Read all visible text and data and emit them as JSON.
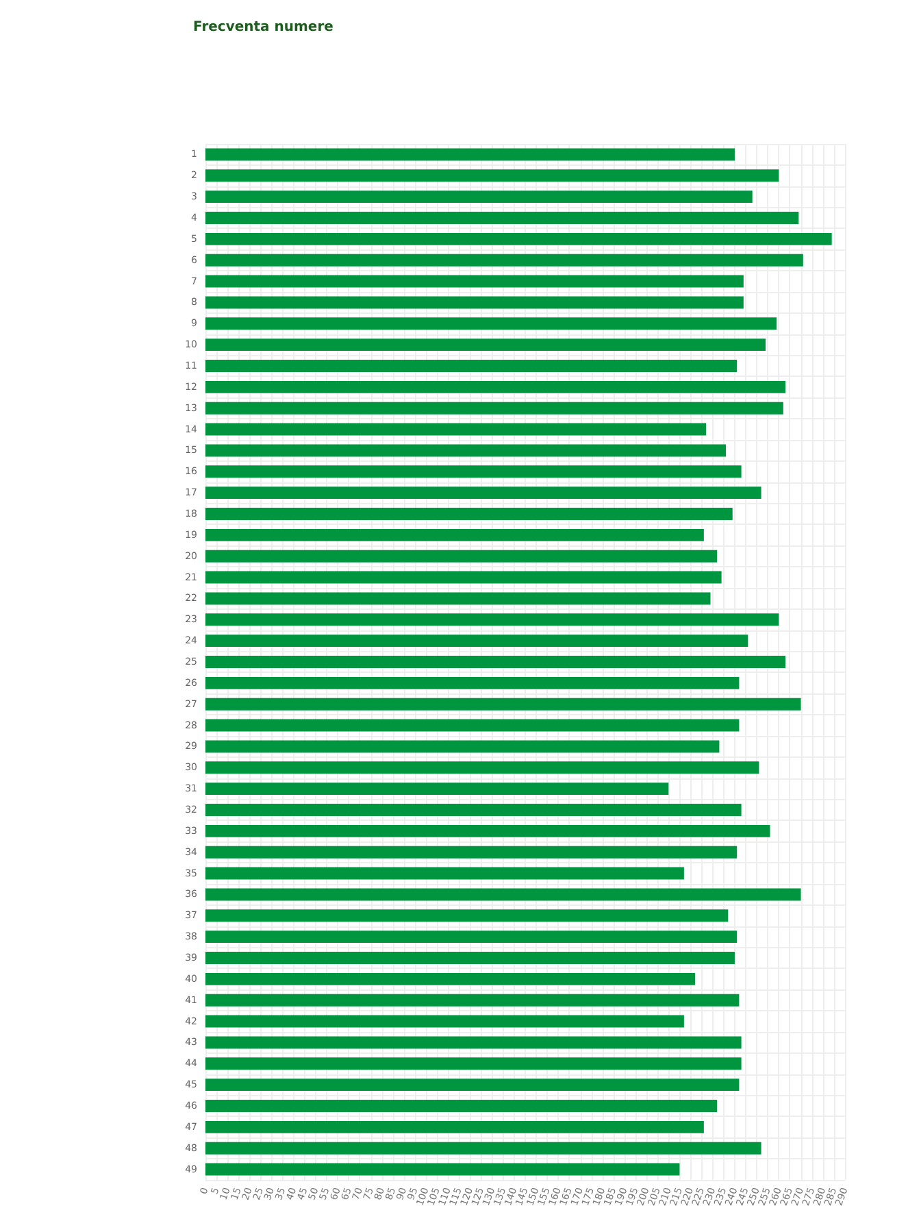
{
  "chart_data": {
    "type": "bar",
    "orientation": "horizontal",
    "title": "Frecventa numere",
    "categories": [
      "1",
      "2",
      "3",
      "4",
      "5",
      "6",
      "7",
      "8",
      "9",
      "10",
      "11",
      "12",
      "13",
      "14",
      "15",
      "16",
      "17",
      "18",
      "19",
      "20",
      "21",
      "22",
      "23",
      "24",
      "25",
      "26",
      "27",
      "28",
      "29",
      "30",
      "31",
      "32",
      "33",
      "34",
      "35",
      "36",
      "37",
      "38",
      "39",
      "40",
      "41",
      "42",
      "43",
      "44",
      "45",
      "46",
      "47",
      "48",
      "49"
    ],
    "values": [
      240,
      260,
      248,
      269,
      284,
      271,
      244,
      244,
      259,
      254,
      241,
      263,
      262,
      227,
      236,
      243,
      252,
      239,
      226,
      232,
      234,
      229,
      260,
      246,
      263,
      242,
      270,
      242,
      233,
      251,
      210,
      243,
      256,
      241,
      217,
      270,
      237,
      241,
      240,
      222,
      242,
      217,
      243,
      243,
      242,
      232,
      226,
      252,
      215
    ],
    "color": "#009640",
    "xlim": [
      0,
      290
    ],
    "xticks": [
      0,
      5,
      10,
      15,
      20,
      25,
      30,
      35,
      40,
      45,
      50,
      55,
      60,
      65,
      70,
      75,
      80,
      85,
      90,
      95,
      100,
      105,
      110,
      115,
      120,
      125,
      130,
      135,
      140,
      145,
      150,
      155,
      160,
      165,
      170,
      175,
      180,
      185,
      190,
      195,
      200,
      205,
      210,
      215,
      220,
      225,
      230,
      235,
      240,
      245,
      250,
      255,
      260,
      265,
      270,
      275,
      280,
      285,
      290
    ],
    "grid": true
  }
}
